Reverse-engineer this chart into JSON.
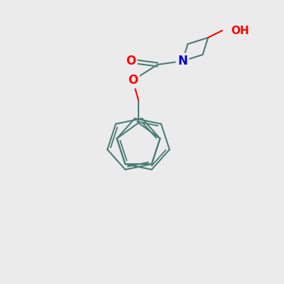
{
  "background_color": "#ebebeb",
  "bond_color": "#4a7c72",
  "bond_width": 1.5,
  "atom_colors": {
    "O": "#ff0000",
    "N": "#0000cc"
  },
  "figsize": [
    4.0,
    4.0
  ],
  "dpi": 100
}
